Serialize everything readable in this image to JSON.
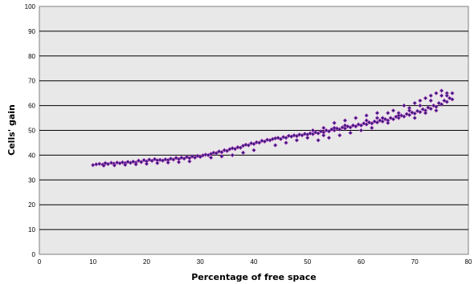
{
  "chart_data": {
    "type": "scatter",
    "title": "",
    "xlabel": "Percentage of free space",
    "ylabel": "Cells' gain",
    "xlim": [
      0,
      80
    ],
    "ylim": [
      0,
      100
    ],
    "x_ticks": [
      0,
      10,
      20,
      30,
      40,
      50,
      60,
      70,
      80
    ],
    "y_ticks": [
      0,
      10,
      20,
      30,
      40,
      50,
      60,
      70,
      80,
      90,
      100
    ],
    "grid": "horizontal",
    "plot_background": "#e8e8e8",
    "gridline_color": "#000000",
    "marker_color": "#2a1f7a",
    "marker_edge_color": "#c040c0",
    "legend": "none",
    "series": [
      {
        "points": [
          [
            10,
            36
          ],
          [
            10.6,
            36.3
          ],
          [
            11.2,
            36.5
          ],
          [
            11.8,
            36.2
          ],
          [
            12.3,
            36.8
          ],
          [
            12.8,
            36.4
          ],
          [
            13.4,
            36.9
          ],
          [
            13.9,
            36.6
          ],
          [
            14.5,
            37
          ],
          [
            15,
            36.7
          ],
          [
            15.5,
            37.1
          ],
          [
            16,
            36.8
          ],
          [
            16.5,
            37.3
          ],
          [
            17,
            36.9
          ],
          [
            17.5,
            37.4
          ],
          [
            18,
            37
          ],
          [
            18.5,
            37.8
          ],
          [
            19,
            37.2
          ],
          [
            19.5,
            38
          ],
          [
            20,
            37.5
          ],
          [
            20.5,
            38.2
          ],
          [
            21,
            37.7
          ],
          [
            21.5,
            38.4
          ],
          [
            22,
            37.9
          ],
          [
            22.5,
            38.1
          ],
          [
            23,
            37.8
          ],
          [
            23.5,
            38.3
          ],
          [
            24,
            38
          ],
          [
            24.5,
            38.6
          ],
          [
            25,
            38.2
          ],
          [
            25.5,
            38.9
          ],
          [
            26,
            38.4
          ],
          [
            26.5,
            39
          ],
          [
            27,
            38.6
          ],
          [
            27.5,
            39.3
          ],
          [
            28,
            38.8
          ],
          [
            28.5,
            39.5
          ],
          [
            29,
            39
          ],
          [
            29.5,
            39.7
          ],
          [
            30,
            39.3
          ],
          [
            30.5,
            39.9
          ],
          [
            31,
            40.2
          ],
          [
            31.5,
            40
          ],
          [
            32,
            40.5
          ],
          [
            32.5,
            41
          ],
          [
            33,
            40.8
          ],
          [
            33.5,
            41.5
          ],
          [
            34,
            41.2
          ],
          [
            34.5,
            42
          ],
          [
            35,
            41.7
          ],
          [
            35.5,
            42.4
          ],
          [
            36,
            42.8
          ],
          [
            36.5,
            42.5
          ],
          [
            37,
            43.2
          ],
          [
            37.5,
            43
          ],
          [
            38,
            43.8
          ],
          [
            38.5,
            44.2
          ],
          [
            39,
            44
          ],
          [
            39.5,
            44.8
          ],
          [
            40,
            44.5
          ],
          [
            40.5,
            45.2
          ],
          [
            41,
            45
          ],
          [
            41.5,
            45.8
          ],
          [
            42,
            45.5
          ],
          [
            42.5,
            46.2
          ],
          [
            43,
            46
          ],
          [
            43.5,
            46.5
          ],
          [
            44,
            46.8
          ],
          [
            44.5,
            47
          ],
          [
            45,
            46.5
          ],
          [
            45.5,
            47.3
          ],
          [
            46,
            47
          ],
          [
            46.5,
            47.8
          ],
          [
            47,
            47.5
          ],
          [
            47.5,
            48
          ],
          [
            48,
            47.7
          ],
          [
            48.5,
            48.3
          ],
          [
            49,
            48
          ],
          [
            49.5,
            48.6
          ],
          [
            50,
            48.3
          ],
          [
            50.5,
            48.8
          ],
          [
            51,
            48.5
          ],
          [
            51.5,
            49.2
          ],
          [
            52,
            48.8
          ],
          [
            52.5,
            49.6
          ],
          [
            53,
            49.2
          ],
          [
            53.5,
            50
          ],
          [
            54,
            49.6
          ],
          [
            54.5,
            50.4
          ],
          [
            55,
            50
          ],
          [
            55.5,
            50.8
          ],
          [
            56,
            50.4
          ],
          [
            56.5,
            51.2
          ],
          [
            57,
            50.8
          ],
          [
            57.5,
            51.6
          ],
          [
            58,
            51.2
          ],
          [
            58.5,
            52
          ],
          [
            59,
            51.6
          ],
          [
            59.5,
            52.4
          ],
          [
            60,
            52
          ],
          [
            60.5,
            52.8
          ],
          [
            61,
            52.4
          ],
          [
            61.5,
            53.2
          ],
          [
            62,
            52.8
          ],
          [
            62.5,
            53.6
          ],
          [
            63,
            53.2
          ],
          [
            63.5,
            54
          ],
          [
            64,
            53.6
          ],
          [
            64.5,
            54.5
          ],
          [
            65,
            54
          ],
          [
            65.5,
            55
          ],
          [
            66,
            54.5
          ],
          [
            66.5,
            55.5
          ],
          [
            67,
            55
          ],
          [
            67.5,
            56
          ],
          [
            68,
            55.6
          ],
          [
            68.5,
            56.6
          ],
          [
            69,
            56.2
          ],
          [
            69.5,
            57.2
          ],
          [
            70,
            56.8
          ],
          [
            70.5,
            57.8
          ],
          [
            71,
            57.4
          ],
          [
            71.5,
            58.5
          ],
          [
            72,
            58
          ],
          [
            72.5,
            59.2
          ],
          [
            73,
            58.7
          ],
          [
            73.5,
            60
          ],
          [
            74,
            59.5
          ],
          [
            74.5,
            61
          ],
          [
            75,
            60.5
          ],
          [
            75.5,
            62
          ],
          [
            76,
            61.5
          ],
          [
            76.5,
            63
          ],
          [
            77,
            62.5
          ],
          [
            72,
            63
          ],
          [
            73,
            64
          ],
          [
            74,
            65
          ],
          [
            75,
            66
          ],
          [
            76,
            65
          ],
          [
            70,
            61
          ],
          [
            71,
            62
          ],
          [
            68,
            60
          ],
          [
            69,
            59
          ],
          [
            66,
            58
          ],
          [
            67,
            57
          ],
          [
            64,
            55
          ],
          [
            60,
            50
          ],
          [
            58,
            49
          ],
          [
            56,
            48
          ],
          [
            54,
            47
          ],
          [
            52,
            46
          ],
          [
            62,
            51
          ],
          [
            65,
            53
          ],
          [
            70,
            55
          ],
          [
            72,
            57
          ],
          [
            74,
            58
          ],
          [
            44,
            44
          ],
          [
            46,
            45
          ],
          [
            48,
            46
          ],
          [
            50,
            47
          ],
          [
            53,
            51
          ],
          [
            55,
            53
          ],
          [
            57,
            54
          ],
          [
            59,
            55
          ],
          [
            61,
            56
          ],
          [
            63,
            57
          ],
          [
            40,
            42
          ],
          [
            38,
            41
          ],
          [
            36,
            40
          ],
          [
            34,
            39.5
          ],
          [
            32,
            39
          ],
          [
            28,
            37.5
          ],
          [
            26,
            37.2
          ],
          [
            24,
            37
          ],
          [
            22,
            36.8
          ],
          [
            20,
            36.5
          ],
          [
            18,
            36.3
          ],
          [
            16,
            36.1
          ],
          [
            14,
            35.9
          ],
          [
            12,
            35.8
          ],
          [
            75,
            64
          ],
          [
            76,
            64
          ],
          [
            77,
            65
          ],
          [
            73,
            62
          ],
          [
            71,
            60
          ],
          [
            69,
            58
          ],
          [
            67,
            56
          ],
          [
            65,
            57
          ],
          [
            63,
            55
          ],
          [
            61,
            54
          ],
          [
            57,
            52
          ],
          [
            55,
            51
          ],
          [
            53,
            48
          ],
          [
            51,
            50
          ]
        ]
      }
    ]
  }
}
